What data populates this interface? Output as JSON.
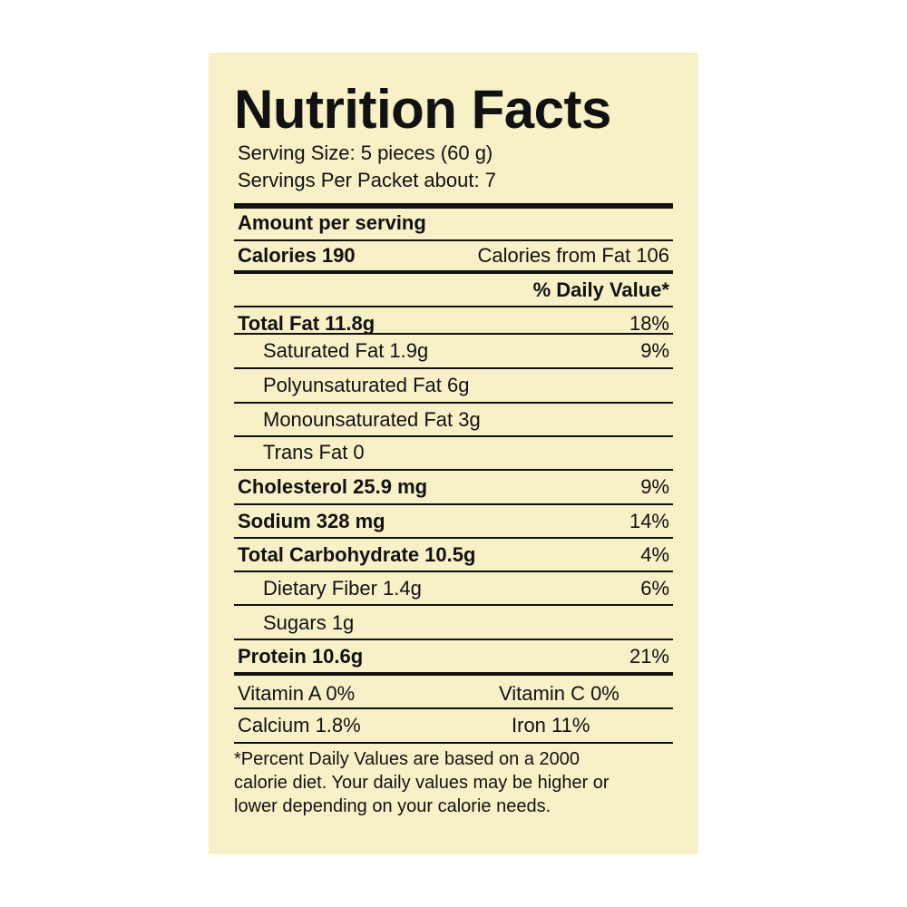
{
  "title": "Nutrition Facts",
  "serving_size": "Serving Size: 5 pieces (60 g)",
  "servings_per_packet": "Servings Per Packet about: 7",
  "amount_per_serving": "Amount per serving",
  "calories": "Calories 190",
  "calories_from_fat": "Calories from Fat 106",
  "daily_value_header": "% Daily Value*",
  "nutrients": [
    {
      "label": "Total Fat  11.8g",
      "dv": "18%"
    },
    {
      "label": "Saturated Fat 1.9g",
      "dv": "9%"
    },
    {
      "label": "Polyunsaturated Fat  6g",
      "dv": ""
    },
    {
      "label": "Monounsaturated Fat 3g",
      "dv": ""
    },
    {
      "label": "Trans Fat 0",
      "dv": ""
    },
    {
      "label": "Cholesterol 25.9 mg",
      "dv": "9%"
    },
    {
      "label": "Sodium 328 mg",
      "dv": "14%"
    },
    {
      "label": "Total Carbohydrate  10.5g",
      "dv": "4%"
    },
    {
      "label": "Dietary Fiber 1.4g",
      "dv": "6%"
    },
    {
      "label": "Sugars 1g",
      "dv": ""
    },
    {
      "label": "Protein 10.6g",
      "dv": "21%"
    }
  ],
  "vitamins": {
    "vitamin_a": "Vitamin A 0%",
    "vitamin_c": "Vitamin C 0%",
    "calcium": "Calcium 1.8%",
    "iron": "Iron 11%"
  },
  "footnote": [
    "*Percent Daily Values are based on a 2000",
    "calorie diet. Your daily values may be higher or",
    "lower depending on your calorie needs."
  ]
}
